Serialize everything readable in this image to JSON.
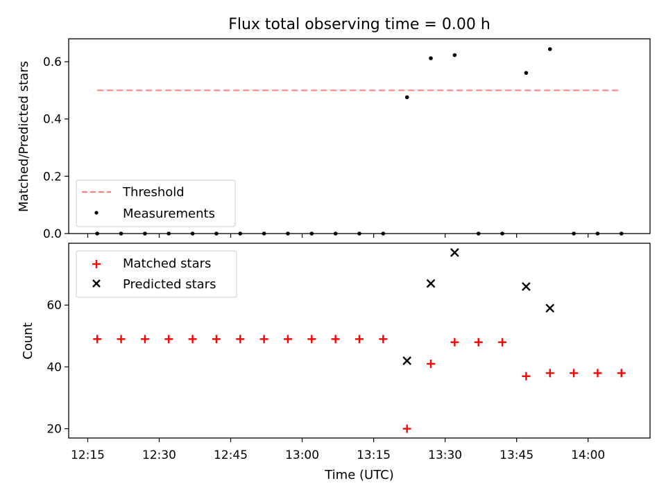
{
  "figure": {
    "title": "Flux total observing time = 0.00 h",
    "xlabel": "Time (UTC)"
  },
  "chart_data": [
    {
      "type": "scatter",
      "panel": "top",
      "ylabel": "Matched/Predicted stars",
      "xlim": [
        "12:11",
        "14:13"
      ],
      "ylim": [
        0,
        0.68
      ],
      "yticks": [
        0.0,
        0.2,
        0.4,
        0.6
      ],
      "ytick_labels": [
        "0.0",
        "0.2",
        "0.4",
        "0.6"
      ],
      "threshold": {
        "name": "Threshold",
        "value": 0.5,
        "x_start": "12:17",
        "x_end": "14:07",
        "color": "#ff7f7f",
        "style": "dashed"
      },
      "series": [
        {
          "name": "Measurements",
          "marker": "dot",
          "color": "#000000",
          "x": [
            "12:17",
            "12:22",
            "12:27",
            "12:32",
            "12:37",
            "12:42",
            "12:47",
            "12:52",
            "12:57",
            "13:02",
            "13:07",
            "13:12",
            "13:17",
            "13:22",
            "13:27",
            "13:32",
            "13:37",
            "13:42",
            "13:47",
            "13:52",
            "13:57",
            "14:02",
            "14:07"
          ],
          "y": [
            0,
            0,
            0,
            0,
            0,
            0,
            0,
            0,
            0,
            0,
            0,
            0,
            0,
            0.476,
            0.612,
            0.623,
            0,
            0,
            0.561,
            0.644,
            0,
            0,
            0
          ]
        }
      ],
      "legend": {
        "placement": "lower-left",
        "entries": [
          "Threshold",
          "Measurements"
        ]
      }
    },
    {
      "type": "scatter",
      "panel": "bottom",
      "ylabel": "Count",
      "xlabel": "Time (UTC)",
      "xlim": [
        "12:11",
        "14:13"
      ],
      "ylim": [
        17,
        80
      ],
      "yticks": [
        20,
        40,
        60
      ],
      "ytick_labels": [
        "20",
        "40",
        "60"
      ],
      "xticks": [
        "12:15",
        "12:30",
        "12:45",
        "13:00",
        "13:15",
        "13:30",
        "13:45",
        "14:00"
      ],
      "xtick_labels": [
        "12:15",
        "12:30",
        "12:45",
        "13:00",
        "13:15",
        "13:30",
        "13:45",
        "14:00"
      ],
      "series": [
        {
          "name": "Matched stars",
          "marker": "plus",
          "color": "#ff0000",
          "x": [
            "12:17",
            "12:22",
            "12:27",
            "12:32",
            "12:37",
            "12:42",
            "12:47",
            "12:52",
            "12:57",
            "13:02",
            "13:07",
            "13:12",
            "13:17",
            "13:22",
            "13:27",
            "13:32",
            "13:37",
            "13:42",
            "13:47",
            "13:52",
            "13:57",
            "14:02",
            "14:07"
          ],
          "y": [
            49,
            49,
            49,
            49,
            49,
            49,
            49,
            49,
            49,
            49,
            49,
            49,
            49,
            20,
            41,
            48,
            48,
            48,
            37,
            38,
            38,
            38,
            38
          ]
        },
        {
          "name": "Predicted stars",
          "marker": "x",
          "color": "#000000",
          "x": [
            "13:22",
            "13:27",
            "13:32",
            "13:47",
            "13:52"
          ],
          "y": [
            42,
            67,
            77,
            66,
            59
          ]
        }
      ],
      "legend": {
        "placement": "upper-left",
        "entries": [
          "Matched stars",
          "Predicted stars"
        ]
      }
    }
  ]
}
